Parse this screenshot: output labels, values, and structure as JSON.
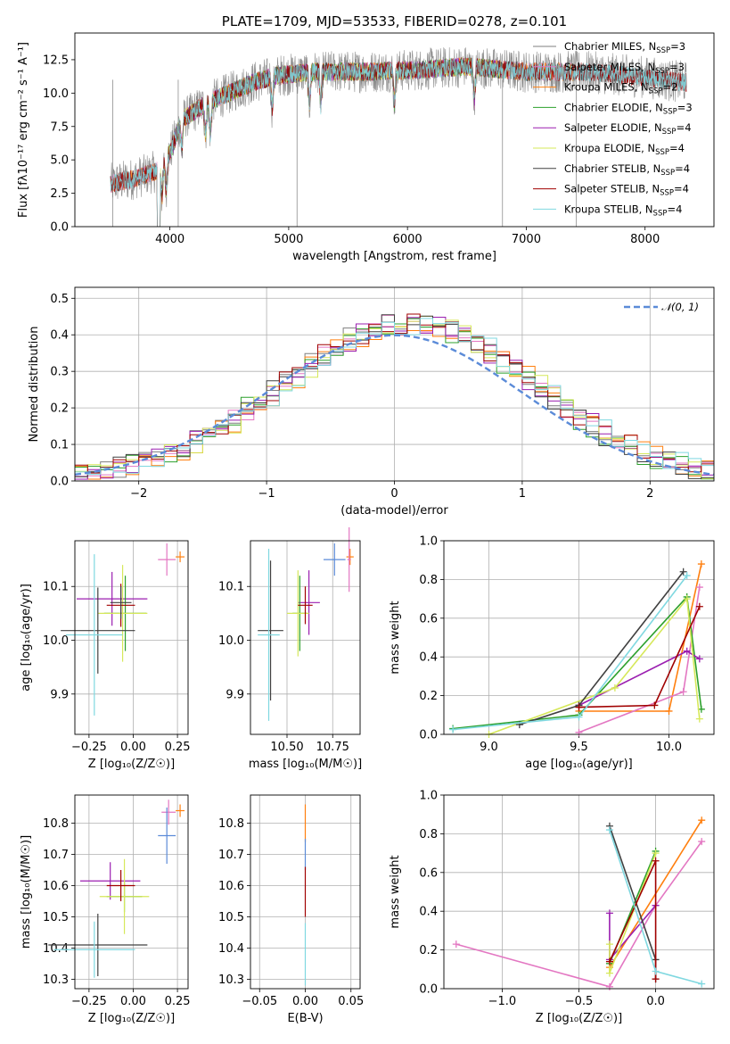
{
  "colors": {
    "chabrier_miles": "#7f7f7f",
    "salpeter_miles": "#e377c2",
    "kroupa_miles": "#ff7f0e",
    "chabrier_elodie": "#2ca02c",
    "salpeter_elodie": "#9b1fb0",
    "kroupa_elodie": "#d6e85a",
    "chabrier_stelib": "#404040",
    "salpeter_stelib": "#a00000",
    "kroupa_stelib": "#7fd8e0",
    "normal": "#5b8bd8",
    "extra": "#1f77b4"
  },
  "chart_data": [
    {
      "id": "spectrum",
      "type": "line",
      "title": "PLATE=1709, MJD=53533, FIBERID=0278, z=0.101",
      "xlabel": "wavelength [Angstrom, rest frame]",
      "ylabel": "Flux [fλ10⁻¹⁷ erg cm⁻² s⁻¹ A⁻¹]",
      "xlim": [
        3200,
        8580
      ],
      "ylim": [
        0,
        14.5
      ],
      "xticks": [
        4000,
        5000,
        6000,
        7000,
        8000
      ],
      "yticks": [
        0.0,
        2.5,
        5.0,
        7.5,
        10.0,
        12.5
      ],
      "grid": false,
      "legend_position": "upper-right",
      "series": [
        {
          "name": "Chabrier MILES, N_SSP=3",
          "label_main": "Chabrier MILES, N",
          "label_sub": "SSP",
          "label_end": "=3",
          "color_key": "chabrier_miles",
          "x_range": [
            3500,
            8350
          ]
        },
        {
          "name": "Salpeter MILES, N_SSP=3",
          "label_main": "Salpeter MILES, N",
          "label_sub": "SSP",
          "label_end": "=3",
          "color_key": "salpeter_miles",
          "x_range": [
            3500,
            7400
          ]
        },
        {
          "name": "Kroupa MILES, N_SSP=2",
          "label_main": "Kroupa MILES, N",
          "label_sub": "SSP",
          "label_end": "=2",
          "color_key": "kroupa_miles",
          "x_range": [
            3500,
            7400
          ]
        },
        {
          "name": "Chabrier ELODIE, N_SSP=3",
          "label_main": "Chabrier ELODIE, N",
          "label_sub": "SSP",
          "label_end": "=3",
          "color_key": "chabrier_elodie",
          "x_range": [
            3900,
            6800
          ]
        },
        {
          "name": "Salpeter ELODIE, N_SSP=4",
          "label_main": "Salpeter ELODIE, N",
          "label_sub": "SSP",
          "label_end": "=4",
          "color_key": "salpeter_elodie",
          "x_range": [
            3900,
            6800
          ]
        },
        {
          "name": "Kroupa ELODIE, N_SSP=4",
          "label_main": "Kroupa ELODIE, N",
          "label_sub": "SSP",
          "label_end": "=4",
          "color_key": "kroupa_elodie",
          "x_range": [
            3900,
            6800
          ]
        },
        {
          "name": "Chabrier STELIB, N_SSP=4",
          "label_main": "Chabrier STELIB, N",
          "label_sub": "SSP",
          "label_end": "=4",
          "color_key": "chabrier_stelib",
          "x_range": [
            3500,
            8350
          ]
        },
        {
          "name": "Salpeter STELIB, N_SSP=4",
          "label_main": "Salpeter STELIB, N",
          "label_sub": "SSP",
          "label_end": "=4",
          "color_key": "salpeter_stelib",
          "x_range": [
            3500,
            8350
          ]
        },
        {
          "name": "Kroupa STELIB, N_SSP=4",
          "label_main": "Kroupa STELIB, N",
          "label_sub": "SSP",
          "label_end": "=4",
          "color_key": "kroupa_stelib",
          "x_range": [
            3500,
            8350
          ]
        }
      ],
      "continuum": [
        [
          3500,
          3.2
        ],
        [
          3700,
          3.6
        ],
        [
          3900,
          4.2
        ],
        [
          4000,
          5.5
        ],
        [
          4100,
          8.0
        ],
        [
          4300,
          9.2
        ],
        [
          4500,
          10.0
        ],
        [
          4700,
          10.8
        ],
        [
          4900,
          11.3
        ],
        [
          5200,
          11.6
        ],
        [
          5600,
          11.6
        ],
        [
          6000,
          11.7
        ],
        [
          6500,
          12.0
        ],
        [
          7000,
          11.6
        ],
        [
          7500,
          11.6
        ],
        [
          8000,
          11.2
        ],
        [
          8350,
          10.8
        ]
      ]
    },
    {
      "id": "residuals",
      "type": "step-histogram",
      "xlabel": "(data-model)/error",
      "ylabel": "Normed distribution",
      "xlim": [
        -2.5,
        2.5
      ],
      "ylim": [
        0,
        0.53
      ],
      "xticks": [
        -2,
        -1,
        0,
        1,
        2
      ],
      "yticks": [
        0.0,
        0.1,
        0.2,
        0.3,
        0.4,
        0.5
      ],
      "grid": true,
      "legend_position": "upper-right",
      "legend_label": "𝒩(0, 1)",
      "bin_width": 0.1,
      "bin_start": -2.5,
      "normal_curve": {
        "mean": 0,
        "sigma": 1
      }
    },
    {
      "id": "age-vs-Z",
      "type": "errorbar",
      "xlabel": "Z [log₁₀(Z/Z☉)]",
      "ylabel": "age  [log₁₀(age/yr)]",
      "xlim": [
        -0.33,
        0.31
      ],
      "ylim": [
        9.825,
        10.185
      ],
      "xticks": [
        -0.25,
        0.0,
        0.25
      ],
      "yticks": [
        9.9,
        10.0,
        10.1
      ],
      "grid": true,
      "points": [
        {
          "color_key": "kroupa_miles",
          "x": 0.265,
          "xerr": 0.025,
          "y": 10.155,
          "yerr": 0.01
        },
        {
          "color_key": "salpeter_miles",
          "x": 0.19,
          "xerr": 0.05,
          "y": 10.15,
          "yerr": 0.03
        },
        {
          "color_key": "salpeter_elodie",
          "x": -0.12,
          "xerr": 0.2,
          "y": 10.077,
          "yerr": 0.05
        },
        {
          "color_key": "chabrier_elodie",
          "x": -0.045,
          "xerr": 0.12,
          "y": 10.05,
          "yerr": 0.07
        },
        {
          "color_key": "kroupa_elodie",
          "x": -0.06,
          "xerr": 0.14,
          "y": 10.05,
          "yerr": 0.09
        },
        {
          "color_key": "salpeter_stelib",
          "x": -0.07,
          "xerr": 0.08,
          "y": 10.065,
          "yerr": 0.04
        },
        {
          "color_key": "chabrier_stelib",
          "x": -0.07,
          "xerr": 0.06,
          "y": 10.07,
          "yerr": 0.03
        },
        {
          "color_key": "chabrier_stelib",
          "x": -0.2,
          "xerr": 0.21,
          "y": 10.018,
          "yerr": 0.08
        },
        {
          "color_key": "kroupa_stelib",
          "x": -0.22,
          "xerr": 0.16,
          "y": 10.01,
          "yerr": 0.15
        }
      ]
    },
    {
      "id": "age-vs-mass",
      "type": "errorbar",
      "xlabel": "mass [log₁₀(M/M☉)]",
      "ylabel": "",
      "xlim": [
        10.3,
        10.9
      ],
      "ylim": [
        9.825,
        10.185
      ],
      "xticks": [
        10.5,
        10.75
      ],
      "yticks": [
        9.9,
        10.0,
        10.1
      ],
      "grid": true,
      "points": [
        {
          "color_key": "kroupa_miles",
          "x": 10.845,
          "xerr": 0.02,
          "y": 10.155,
          "yerr": 0.015
        },
        {
          "color_key": "salpeter_miles",
          "x": 10.84,
          "xerr": 0.01,
          "y": 10.15,
          "yerr": 0.06
        },
        {
          "color_key": "normal",
          "x": 10.76,
          "xerr": 0.06,
          "y": 10.15,
          "yerr": 0.03
        },
        {
          "color_key": "salpeter_elodie",
          "x": 10.62,
          "xerr": 0.06,
          "y": 10.07,
          "yerr": 0.06
        },
        {
          "color_key": "chabrier_elodie",
          "x": 10.57,
          "xerr": 0.04,
          "y": 10.05,
          "yerr": 0.07
        },
        {
          "color_key": "kroupa_elodie",
          "x": 10.56,
          "xerr": 0.06,
          "y": 10.05,
          "yerr": 0.08
        },
        {
          "color_key": "salpeter_stelib",
          "x": 10.6,
          "xerr": 0.04,
          "y": 10.065,
          "yerr": 0.035
        },
        {
          "color_key": "chabrier_stelib",
          "x": 10.41,
          "xerr": 0.07,
          "y": 10.018,
          "yerr": 0.13
        },
        {
          "color_key": "kroupa_stelib",
          "x": 10.4,
          "xerr": 0.06,
          "y": 10.01,
          "yerr": 0.16
        }
      ]
    },
    {
      "id": "weight-vs-age",
      "type": "line",
      "xlabel": "age  [log₁₀(age/yr)]",
      "ylabel": "mass weight",
      "xlim": [
        8.75,
        10.25
      ],
      "ylim": [
        0,
        1
      ],
      "xticks": [
        9.0,
        9.5,
        10.0
      ],
      "yticks": [
        0.0,
        0.2,
        0.4,
        0.6,
        0.8,
        1.0
      ],
      "grid": true,
      "series": [
        {
          "color_key": "kroupa_miles",
          "x": [
            9.5,
            10.0,
            10.18
          ],
          "y": [
            0.12,
            0.12,
            0.88
          ]
        },
        {
          "color_key": "salpeter_miles",
          "x": [
            9.5,
            10.08,
            10.17
          ],
          "y": [
            0.01,
            0.22,
            0.76
          ]
        },
        {
          "color_key": "chabrier_elodie",
          "x": [
            8.8,
            9.5,
            10.1,
            10.18
          ],
          "y": [
            0.03,
            0.1,
            0.71,
            0.13
          ]
        },
        {
          "color_key": "salpeter_elodie",
          "x": [
            9.5,
            10.1,
            10.17
          ],
          "y": [
            0.15,
            0.43,
            0.39
          ]
        },
        {
          "color_key": "kroupa_elodie",
          "x": [
            9.0,
            9.7,
            10.1,
            10.17
          ],
          "y": [
            0.0,
            0.24,
            0.7,
            0.08
          ]
        },
        {
          "color_key": "chabrier_stelib",
          "x": [
            9.17,
            9.5,
            10.08
          ],
          "y": [
            0.05,
            0.15,
            0.84
          ]
        },
        {
          "color_key": "salpeter_stelib",
          "x": [
            9.5,
            9.92,
            10.17
          ],
          "y": [
            0.14,
            0.15,
            0.66
          ]
        },
        {
          "color_key": "kroupa_stelib",
          "x": [
            8.8,
            9.5,
            10.1
          ],
          "y": [
            0.025,
            0.09,
            0.82
          ]
        }
      ]
    },
    {
      "id": "mass-vs-Z",
      "type": "errorbar",
      "xlabel": "Z [log₁₀(Z/Z☉)]",
      "ylabel": "mass [log₁₀(M/M☉)]",
      "xlim": [
        -0.33,
        0.31
      ],
      "ylim": [
        10.27,
        10.89
      ],
      "xticks": [
        -0.25,
        0.0,
        0.25
      ],
      "yticks": [
        10.3,
        10.4,
        10.5,
        10.6,
        10.7,
        10.8
      ],
      "grid": true,
      "points": [
        {
          "color_key": "kroupa_miles",
          "x": 0.265,
          "xerr": 0.025,
          "y": 10.84,
          "yerr": 0.02
        },
        {
          "color_key": "salpeter_miles",
          "x": 0.2,
          "xerr": 0.04,
          "y": 10.835,
          "yerr": 0.04
        },
        {
          "color_key": "normal",
          "x": 0.19,
          "xerr": 0.05,
          "y": 10.76,
          "yerr": 0.09
        },
        {
          "color_key": "salpeter_elodie",
          "x": -0.13,
          "xerr": 0.17,
          "y": 10.615,
          "yerr": 0.06
        },
        {
          "color_key": "chabrier_elodie",
          "x": -0.05,
          "xerr": 0.1,
          "y": 10.565,
          "yerr": 0.05
        },
        {
          "color_key": "kroupa_elodie",
          "x": -0.05,
          "xerr": 0.14,
          "y": 10.565,
          "yerr": 0.12
        },
        {
          "color_key": "salpeter_stelib",
          "x": -0.07,
          "xerr": 0.08,
          "y": 10.6,
          "yerr": 0.05
        },
        {
          "color_key": "chabrier_stelib",
          "x": -0.2,
          "xerr": 0.28,
          "y": 10.41,
          "yerr": 0.1
        },
        {
          "color_key": "kroupa_stelib",
          "x": -0.22,
          "xerr": 0.23,
          "y": 10.395,
          "yerr": 0.09
        }
      ]
    },
    {
      "id": "mass-vs-EBV",
      "type": "errorbar",
      "xlabel": "E(B-V)",
      "ylabel": "",
      "xlim": [
        -0.06,
        0.06
      ],
      "ylim": [
        10.27,
        10.89
      ],
      "xticks": [
        -0.05,
        0.0,
        0.05
      ],
      "yticks": [
        10.3,
        10.4,
        10.5,
        10.6,
        10.7,
        10.8
      ],
      "grid": true,
      "points": [
        {
          "color_key": "kroupa_miles",
          "x": 0.0,
          "xerr": 0.0,
          "y": 10.8,
          "yerr": 0.06
        },
        {
          "color_key": "normal",
          "x": 0.0,
          "xerr": 0.0,
          "y": 10.7,
          "yerr": 0.05
        },
        {
          "color_key": "salpeter_stelib",
          "x": 0.0,
          "xerr": 0.0,
          "y": 10.58,
          "yerr": 0.08
        },
        {
          "color_key": "kroupa_stelib",
          "x": 0.0,
          "xerr": 0.0,
          "y": 10.38,
          "yerr": 0.1
        }
      ]
    },
    {
      "id": "weight-vs-Z",
      "type": "line",
      "xlabel": "Z [log₁₀(Z/Z☉)]",
      "ylabel": "mass weight",
      "xlim": [
        -1.38,
        0.38
      ],
      "ylim": [
        0,
        1
      ],
      "xticks": [
        -1.0,
        -0.5,
        0.0
      ],
      "yticks": [
        0.0,
        0.2,
        0.4,
        0.6,
        0.8,
        1.0
      ],
      "grid": true,
      "series": [
        {
          "color_key": "kroupa_miles",
          "x": [
            -0.3,
            0.3
          ],
          "y": [
            0.11,
            0.87
          ]
        },
        {
          "color_key": "salpeter_miles",
          "x": [
            -1.3,
            -0.3,
            0.0,
            0.3
          ],
          "y": [
            0.23,
            0.01,
            0.43,
            0.76
          ]
        },
        {
          "color_key": "chabrier_elodie",
          "x": [
            -0.3,
            0.0
          ],
          "y": [
            0.13,
            0.71
          ]
        },
        {
          "color_key": "salpeter_elodie",
          "x": [
            -0.3,
            -0.3,
            0.0
          ],
          "y": [
            0.39,
            0.15,
            0.43
          ]
        },
        {
          "color_key": "kroupa_elodie",
          "x": [
            -0.3,
            -0.3,
            0.0
          ],
          "y": [
            0.23,
            0.08,
            0.7
          ]
        },
        {
          "color_key": "chabrier_stelib",
          "x": [
            -0.3,
            0.0,
            0.0
          ],
          "y": [
            0.84,
            0.15,
            0.05
          ]
        },
        {
          "color_key": "salpeter_stelib",
          "x": [
            -0.3,
            0.0,
            0.0
          ],
          "y": [
            0.14,
            0.66,
            0.05
          ]
        },
        {
          "color_key": "kroupa_stelib",
          "x": [
            -0.3,
            0.0,
            0.3
          ],
          "y": [
            0.82,
            0.09,
            0.025
          ]
        }
      ]
    }
  ]
}
